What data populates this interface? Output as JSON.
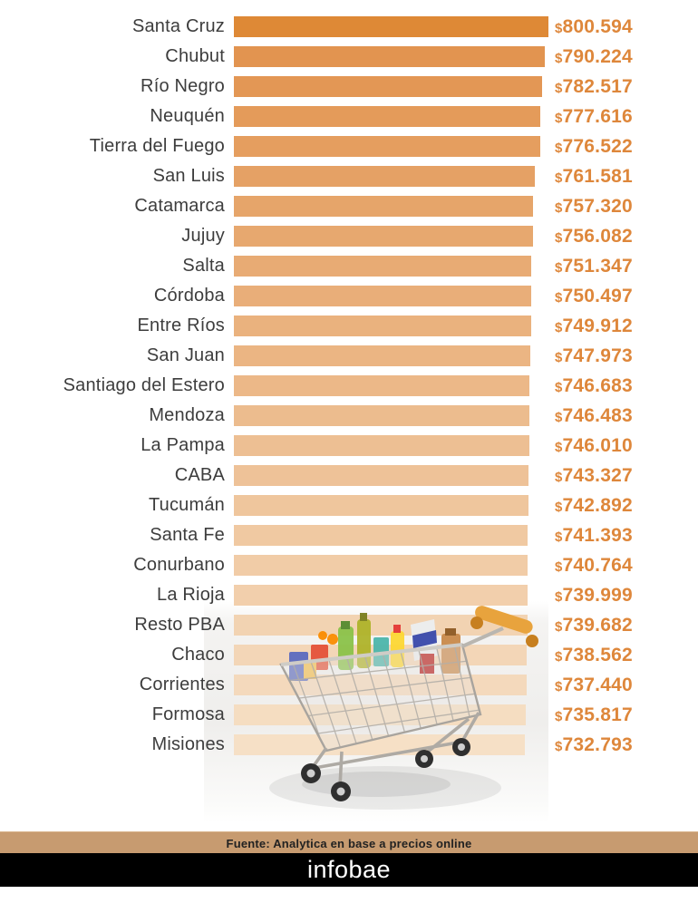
{
  "page": {
    "background": "#ffffff"
  },
  "chart_data": {
    "type": "bar",
    "orientation": "horizontal",
    "title": "",
    "xlabel": "",
    "ylabel": "",
    "currency_symbol": "$",
    "grid": false,
    "legend": "none",
    "value_range": [
      732793,
      800594
    ],
    "categories": [
      "Santa Cruz",
      "Chubut",
      "Río Negro",
      "Neuquén",
      "Tierra del Fuego",
      "San Luis",
      "Catamarca",
      "Jujuy",
      "Salta",
      "Córdoba",
      "Entre Ríos",
      "San Juan",
      "Santiago del Estero",
      "Mendoza",
      "La Pampa",
      "CABA",
      "Tucumán",
      "Santa Fe",
      "Conurbano",
      "La Rioja",
      "Resto PBA",
      "Chaco",
      "Corrientes",
      "Formosa",
      "Misiones"
    ],
    "values": [
      800594,
      790224,
      782517,
      777616,
      776522,
      761581,
      757320,
      756082,
      751347,
      750497,
      749912,
      747973,
      746683,
      746483,
      746010,
      743327,
      742892,
      741393,
      740764,
      739999,
      739682,
      738562,
      737440,
      735817,
      732793
    ],
    "value_labels": [
      "800.594",
      "790.224",
      "782.517",
      "777.616",
      "776.522",
      "761.581",
      "757.320",
      "756.082",
      "751.347",
      "750.497",
      "749.912",
      "747.973",
      "746.683",
      "746.483",
      "746.010",
      "743.327",
      "742.892",
      "741.393",
      "740.764",
      "739.999",
      "739.682",
      "738.562",
      "737.440",
      "735.817",
      "732.793"
    ],
    "bar_colors": [
      "#DE8936",
      "#E29450",
      "#E39755",
      "#E49B5A",
      "#E59E5F",
      "#E5A165",
      "#E6A56A",
      "#E7A86F",
      "#E8AB74",
      "#E9AE79",
      "#EAB27E",
      "#EBB583",
      "#ECB888",
      "#ECBC8E",
      "#EDBF93",
      "#EEC298",
      "#EFC69D",
      "#F0C9A2",
      "#F1CCA7",
      "#F2CFAC",
      "#F2D3B2",
      "#F3D6B7",
      "#F4D9BC",
      "#F5DDC1",
      "#F6E0C6"
    ],
    "label_color": "#3d3d3d",
    "value_color": "#de873b"
  },
  "footer": {
    "source_text": "Fuente: Analytica en base a precios online",
    "source_bg": "#c79b70",
    "brand": "infobae",
    "brand_bg": "#000000",
    "brand_color": "#ffffff"
  },
  "decoration": {
    "cart_icon": "shopping-cart-full-icon"
  }
}
